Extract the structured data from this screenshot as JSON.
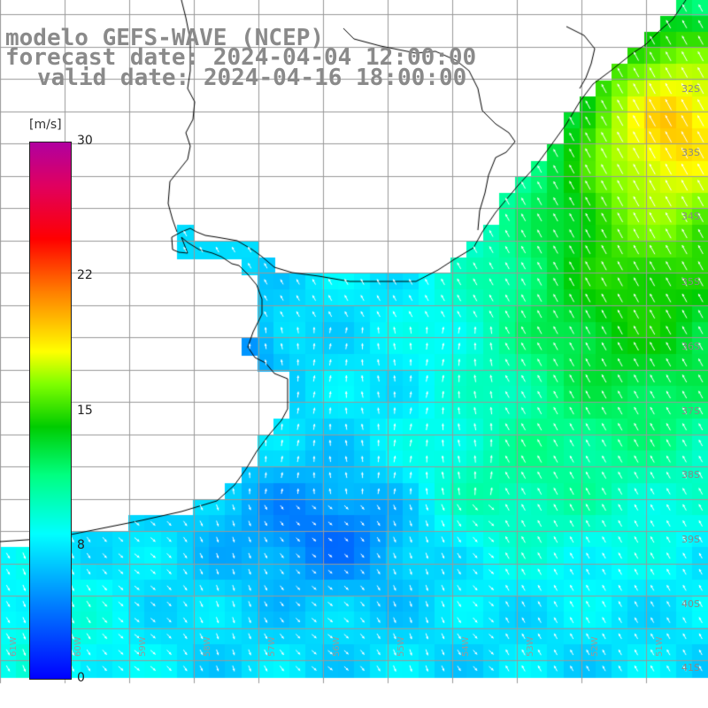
{
  "title": {
    "line1": "modelo GEFS-WAVE (NCEP)",
    "line2": "forecast date: 2024-04-04 12:00:00",
    "line3": "valid date: 2024-04-16 18:00:00"
  },
  "colorbar": {
    "unit": "[m/s]",
    "ticks": [
      "30",
      "22",
      "15",
      "8",
      "0"
    ],
    "colors": [
      "#0000ff",
      "#0080ff",
      "#00ffff",
      "#00ff80",
      "#00cc00",
      "#80ff00",
      "#ffff00",
      "#ff8000",
      "#ff0000",
      "#e00060",
      "#b000a0"
    ]
  },
  "map": {
    "land_color": "#ffffff",
    "grid_color": "#999999",
    "coast_color": "#000000",
    "arrow_color": "#ffffff",
    "lat_labels": [
      "32S",
      "33S",
      "34S",
      "35S",
      "36S",
      "37S",
      "38S",
      "39S",
      "40S",
      "41S"
    ],
    "lon_labels": [
      "61W",
      "60W",
      "59W",
      "58W",
      "57W",
      "56W",
      "55W",
      "54W",
      "53W",
      "52W",
      "51W"
    ]
  }
}
